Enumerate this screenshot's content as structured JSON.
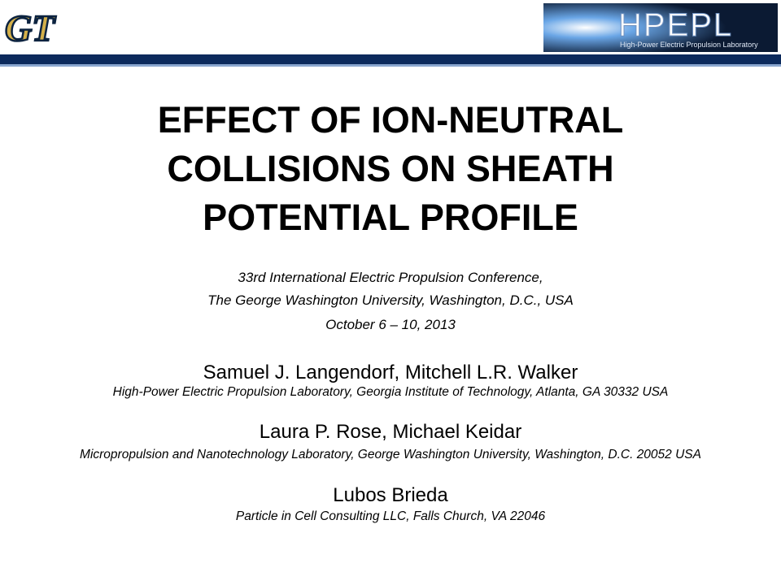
{
  "logos": {
    "left": "GT",
    "right": {
      "title": "HPEPL",
      "subtitle": "High-Power Electric Propulsion Laboratory"
    }
  },
  "title": [
    "EFFECT OF ION-NEUTRAL",
    "COLLISIONS ON SHEATH",
    "POTENTIAL PROFILE"
  ],
  "conference": [
    "33rd International Electric Propulsion Conference,",
    "The George Washington University, Washington, D.C., USA",
    "October 6 – 10, 2013"
  ],
  "authors": [
    {
      "names": "Samuel J. Langendorf, Mitchell L.R. Walker",
      "affiliation": "High-Power Electric Propulsion Laboratory, Georgia Institute of Technology, Atlanta, GA 30332 USA"
    },
    {
      "names": "Laura P. Rose, Michael Keidar",
      "affiliation": "Micropropulsion and Nanotechnology Laboratory, George Washington University, Washington, D.C. 20052 USA"
    },
    {
      "names": "Lubos Brieda",
      "affiliation": "Particle in Cell Consulting LLC, Falls Church, VA 22046"
    }
  ]
}
